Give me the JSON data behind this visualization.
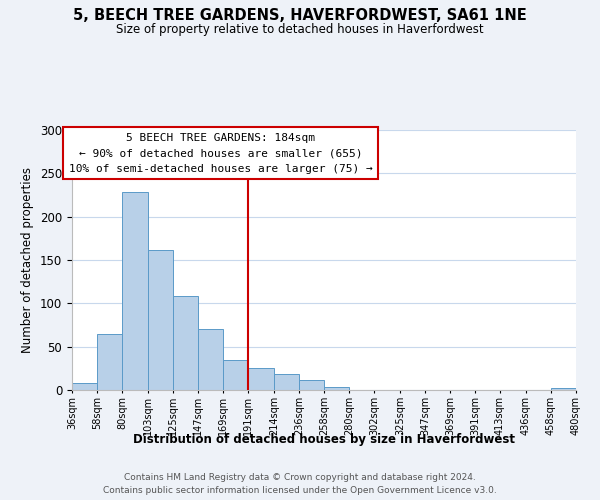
{
  "title": "5, BEECH TREE GARDENS, HAVERFORDWEST, SA61 1NE",
  "subtitle": "Size of property relative to detached houses in Haverfordwest",
  "xlabel": "Distribution of detached houses by size in Haverfordwest",
  "ylabel": "Number of detached properties",
  "bar_left_edges": [
    36,
    58,
    80,
    103,
    125,
    147,
    169,
    191,
    214,
    236,
    258,
    280,
    302,
    325,
    347,
    369,
    391,
    413,
    436,
    458
  ],
  "bar_heights": [
    8,
    65,
    229,
    161,
    109,
    70,
    35,
    25,
    19,
    12,
    3,
    0,
    0,
    0,
    0,
    0,
    0,
    0,
    0,
    2
  ],
  "bar_widths": [
    22,
    22,
    23,
    22,
    22,
    22,
    22,
    23,
    22,
    22,
    22,
    23,
    22,
    22,
    22,
    22,
    22,
    23,
    22,
    22
  ],
  "tick_labels": [
    "36sqm",
    "58sqm",
    "80sqm",
    "103sqm",
    "125sqm",
    "147sqm",
    "169sqm",
    "191sqm",
    "214sqm",
    "236sqm",
    "258sqm",
    "280sqm",
    "302sqm",
    "325sqm",
    "347sqm",
    "369sqm",
    "391sqm",
    "413sqm",
    "436sqm",
    "458sqm",
    "480sqm"
  ],
  "bar_color": "#b8d0e8",
  "bar_edge_color": "#5a9ac8",
  "vline_x": 191,
  "vline_color": "#cc0000",
  "annotation_title": "5 BEECH TREE GARDENS: 184sqm",
  "annotation_line1": "← 90% of detached houses are smaller (655)",
  "annotation_line2": "10% of semi-detached houses are larger (75) →",
  "annotation_box_color": "#ffffff",
  "annotation_box_edge": "#cc0000",
  "ylim": [
    0,
    300
  ],
  "footer1": "Contains HM Land Registry data © Crown copyright and database right 2024.",
  "footer2": "Contains public sector information licensed under the Open Government Licence v3.0.",
  "background_color": "#eef2f8",
  "plot_background_color": "#ffffff",
  "grid_color": "#c8d8ec"
}
